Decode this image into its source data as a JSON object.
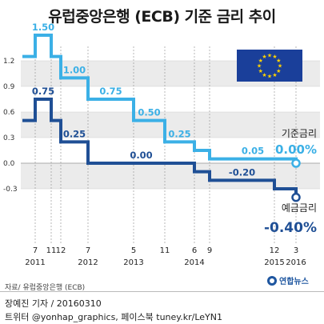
{
  "title": "유럽중앙은행 (ECB) 기준 금리 추이",
  "source": "자료/ 유럽중앙은행 (ECB)",
  "credit_author": "장예진 기자 / 20160310",
  "credit_social": "트위터 @yonhap_graphics, 페이스북 tuney.kr/LeYN1",
  "logo_text": "연합뉴스",
  "colors": {
    "base_rate": "#3bb0e6",
    "deposit_rate": "#1f4f95",
    "grid_band": "#ebebeb",
    "eu_flag": "#1a3f9a",
    "eu_star": "#ffd200",
    "logo": "#1e56a0"
  },
  "chart_data": {
    "type": "line",
    "step": true,
    "title": "유럽중앙은행 (ECB) 기준 금리 추이",
    "y_ticks": [
      "1.2",
      "0.9",
      "0.6",
      "0.3",
      "0.0",
      "-0.3"
    ],
    "y_tick_values": [
      1.2,
      0.9,
      0.6,
      0.3,
      0.0,
      -0.3
    ],
    "ylim": [
      -0.45,
      1.65
    ],
    "grid": true,
    "x_ticks": [
      {
        "month": "7",
        "year": "2011",
        "t": 2011.5
      },
      {
        "month": "11",
        "year": "",
        "t": 2011.83
      },
      {
        "month": "12",
        "year": "",
        "t": 2011.92
      },
      {
        "month": "7",
        "year": "2012",
        "t": 2012.5
      },
      {
        "month": "5",
        "year": "2013",
        "t": 2013.33
      },
      {
        "month": "11",
        "year": "",
        "t": 2013.83
      },
      {
        "month": "6",
        "year": "2014",
        "t": 2014.42
      },
      {
        "month": "9",
        "year": "",
        "t": 2014.67
      },
      {
        "month": "12",
        "year": "2015",
        "t": 2015.92
      },
      {
        "month": "3",
        "year": "2016",
        "t": 2016.17
      }
    ],
    "series": [
      {
        "name": "기준금리",
        "end_label": "0.00%",
        "points": [
          {
            "t": 2011.0,
            "v": 1.25
          },
          {
            "t": 2011.5,
            "v": 1.5,
            "label": "1.50"
          },
          {
            "t": 2011.83,
            "v": 1.25
          },
          {
            "t": 2011.92,
            "v": 1.0,
            "label": "1.00"
          },
          {
            "t": 2012.5,
            "v": 0.75,
            "label": "0.75"
          },
          {
            "t": 2013.33,
            "v": 0.5,
            "label": "0.50"
          },
          {
            "t": 2013.83,
            "v": 0.25,
            "label": "0.25"
          },
          {
            "t": 2014.42,
            "v": 0.15
          },
          {
            "t": 2014.67,
            "v": 0.05,
            "label": "0.05"
          },
          {
            "t": 2016.17,
            "v": 0.0
          }
        ]
      },
      {
        "name": "예금금리",
        "end_label": "-0.40%",
        "points": [
          {
            "t": 2011.0,
            "v": 0.5
          },
          {
            "t": 2011.5,
            "v": 0.75,
            "label": "0.75"
          },
          {
            "t": 2011.83,
            "v": 0.5
          },
          {
            "t": 2011.92,
            "v": 0.25,
            "label": "0.25"
          },
          {
            "t": 2012.5,
            "v": 0.0,
            "label": "0.00"
          },
          {
            "t": 2014.42,
            "v": -0.1
          },
          {
            "t": 2014.67,
            "v": -0.2,
            "label": "-0.20"
          },
          {
            "t": 2015.92,
            "v": -0.3
          },
          {
            "t": 2016.17,
            "v": -0.4
          }
        ]
      }
    ]
  }
}
